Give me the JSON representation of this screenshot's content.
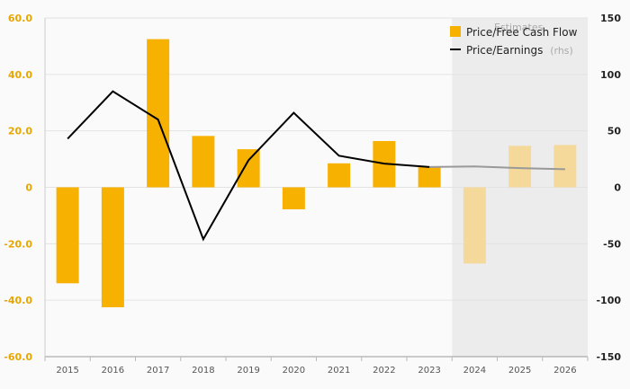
{
  "chart_data": {
    "type": "bar",
    "categories": [
      "2015",
      "2016",
      "2017",
      "2018",
      "2019",
      "2020",
      "2021",
      "2022",
      "2023",
      "2024",
      "2025",
      "2026"
    ],
    "estimate_start": "2024",
    "estimate_label": "Estimates",
    "series": [
      {
        "name": "Price/Free Cash Flow",
        "type": "bar",
        "axis": "left",
        "values": [
          -34,
          -42.5,
          52.5,
          18.2,
          13.5,
          -7.8,
          8.5,
          16.4,
          7.2,
          -27,
          14.7,
          15
        ],
        "color": "#f7b100",
        "estimate_color": "#f5d99a"
      },
      {
        "name": "Price/Earnings",
        "name_suffix": "(rhs)",
        "type": "line",
        "axis": "right",
        "values": [
          43,
          85,
          60,
          -46,
          24,
          66,
          28,
          21,
          18,
          18.5,
          17,
          16
        ],
        "color": "#000000",
        "estimate_color": "#999999"
      }
    ],
    "y_left": {
      "min": -60,
      "max": 60,
      "ticks": [
        "60.0",
        "40.0",
        "20.0",
        "0",
        "-20.0",
        "-40.0",
        "-60.0"
      ]
    },
    "y_right": {
      "min": -150,
      "max": 150,
      "ticks": [
        "150",
        "100",
        "50",
        "0",
        "-50",
        "-100",
        "-150"
      ]
    },
    "grid": true,
    "legend_position": "top-right"
  }
}
